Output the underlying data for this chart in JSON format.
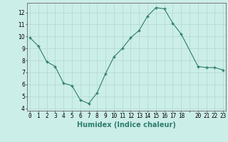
{
  "x": [
    0,
    1,
    2,
    3,
    4,
    5,
    6,
    7,
    8,
    9,
    10,
    11,
    12,
    13,
    14,
    15,
    16,
    17,
    18,
    20,
    21,
    22,
    23
  ],
  "y": [
    9.9,
    9.2,
    7.9,
    7.5,
    6.1,
    5.9,
    4.7,
    4.4,
    5.3,
    6.9,
    8.3,
    9.0,
    9.9,
    10.5,
    11.7,
    12.4,
    12.3,
    11.1,
    10.2,
    7.5,
    7.4,
    7.4,
    7.2
  ],
  "line_color": "#2d7d6e",
  "bg_color": "#cceee8",
  "grid_color": "#b0d8d0",
  "xlabel": "Humidex (Indice chaleur)",
  "ylim": [
    3.8,
    12.8
  ],
  "yticks": [
    4,
    5,
    6,
    7,
    8,
    9,
    10,
    11,
    12
  ],
  "xlim": [
    -0.3,
    23.3
  ],
  "axis_fontsize": 6.5,
  "tick_fontsize": 5.5,
  "xlabel_fontsize": 7
}
